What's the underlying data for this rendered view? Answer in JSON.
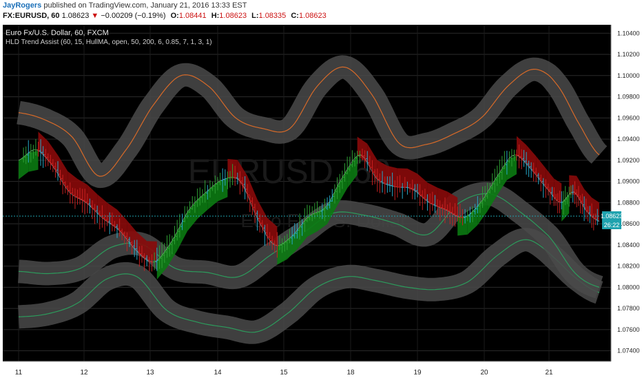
{
  "header": {
    "publisher": "JayRogers",
    "published_text": "published on TradingView.com, January 21, 2016 13:33 EST",
    "symbol": "FX:EURUSD, 60",
    "last": "1.08623",
    "change_arrow": "▼",
    "change": "−0.00209 (−0.19%)",
    "open_label": "O:",
    "open": "1.08441",
    "high_label": "H:",
    "high": "1.08623",
    "low_label": "L:",
    "low": "1.08335",
    "close_label": "C:",
    "close": "1.08623"
  },
  "legend": {
    "title": "Euro Fx/U.S. Dollar, 60, FXCM",
    "indicator": "HLD Trend Assist (60, 15, HullMA, open, 50, 200, 6, 0.85, 7, 1, 3, 1)"
  },
  "watermark": {
    "symbol": "EURUSD, 60",
    "name": "Euro Fx/U.S. Dollar"
  },
  "price_label": "1.08623",
  "countdown_label": "26:22",
  "colors": {
    "background": "#000000",
    "up_candle": "#2e9e34",
    "down_candle": "#c62020",
    "alt_candle": "#26a8c8",
    "orange_band": "#d86a28",
    "green_band": "#2c9c5c",
    "cloud_green": "#0b7a12",
    "cloud_red": "#8a0a0a",
    "outer_glow": "#4a4a4a",
    "price_tag": "#1fa2ae"
  },
  "chart_data": {
    "type": "line",
    "title": "Euro Fx/U.S. Dollar, 60, FXCM",
    "x_tick_labels": [
      "11",
      "12",
      "13",
      "14",
      "15",
      "18",
      "19",
      "20",
      "21"
    ],
    "y_tick_labels": [
      "1.10400",
      "1.10200",
      "1.10000",
      "1.09800",
      "1.09600",
      "1.09400",
      "1.09200",
      "1.09000",
      "1.08800",
      "1.08600",
      "1.08400",
      "1.08200",
      "1.08000",
      "1.07800",
      "1.07600",
      "1.07400"
    ],
    "ylim": [
      1.073,
      1.1048
    ],
    "last_price": 1.08623,
    "grid": true,
    "x_anchor_labels": [
      "11",
      "12",
      "13",
      "14",
      "15",
      "18",
      "19",
      "20",
      "21",
      "21 (last)"
    ],
    "series": [
      {
        "name": "price",
        "values": [
          1.092,
          1.093,
          1.0915,
          1.089,
          1.088,
          1.0865,
          1.0853,
          1.0834,
          1.0824,
          1.0843,
          1.0873,
          1.089,
          1.0902,
          1.09,
          1.0865,
          1.084,
          1.0848,
          1.0867,
          1.0876,
          1.0905,
          1.0925,
          1.0902,
          1.0895,
          1.0893,
          1.088,
          1.0873,
          1.0866,
          1.088,
          1.0905,
          1.0925,
          1.0912,
          1.0893,
          1.088,
          1.089,
          1.0872,
          1.0862
        ]
      },
      {
        "name": "upper_band",
        "values": [
          1.0965,
          1.0958,
          1.0942,
          1.0905,
          1.093,
          1.0972,
          1.1,
          1.099,
          1.096,
          1.095,
          1.095,
          1.099,
          1.1008,
          1.0982,
          1.0936,
          1.0935,
          1.0945,
          1.096,
          1.099,
          1.1006,
          1.099,
          1.0955,
          1.0925
        ]
      },
      {
        "name": "lower_band",
        "values": [
          1.0815,
          1.0813,
          1.0818,
          1.0838,
          1.084,
          1.0818,
          1.0814,
          1.081,
          1.083,
          1.085,
          1.087,
          1.0868,
          1.086,
          1.085,
          1.088,
          1.0888,
          1.087,
          1.0845,
          1.0813,
          1.08
        ]
      },
      {
        "name": "lower_channel",
        "values": [
          1.0772,
          1.0775,
          1.0785,
          1.0808,
          1.081,
          1.0778,
          1.0767,
          1.0762,
          1.0758,
          1.0775,
          1.08,
          1.081,
          1.0806,
          1.08,
          1.0798,
          1.0805,
          1.083,
          1.0845,
          1.0828,
          1.0808,
          1.0795
        ]
      }
    ]
  }
}
